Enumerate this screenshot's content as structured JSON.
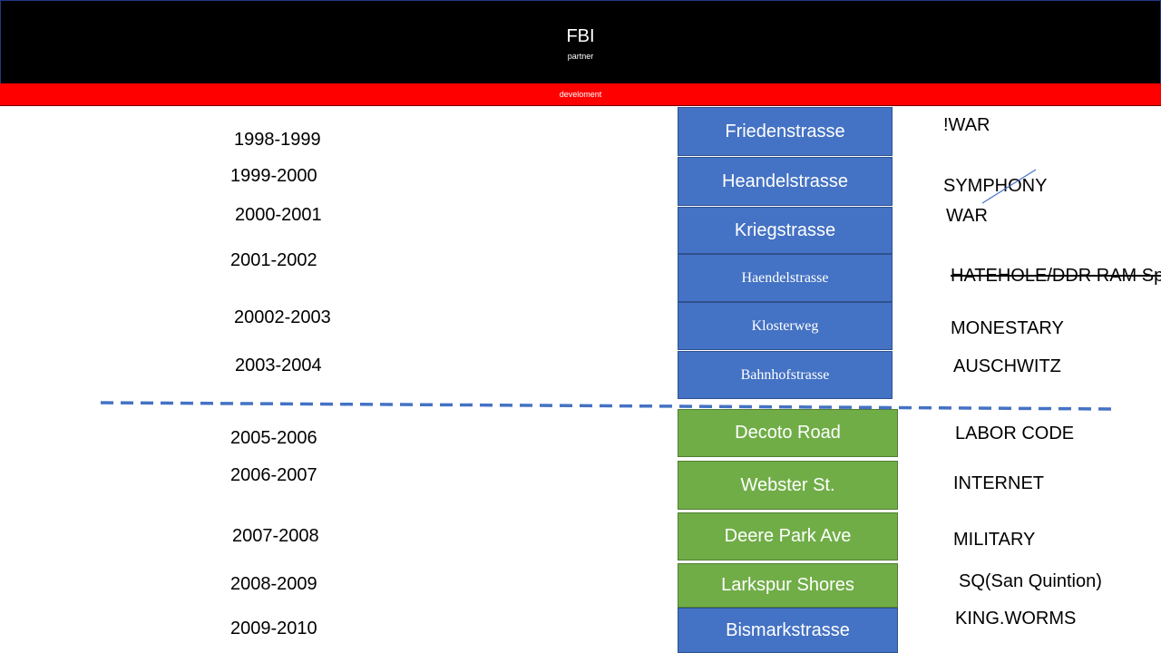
{
  "header": {
    "title": "FBI",
    "subtitle": "partner"
  },
  "banner": {
    "label": "develoment"
  },
  "timeline": [
    {
      "years": "1998-1999",
      "street": "Friedenstrasse",
      "note": "!WAR"
    },
    {
      "years": "1999-2000",
      "street": "Heandelstrasse",
      "note": "SYMPHONY"
    },
    {
      "years": "2000-2001",
      "street": "Kriegstrasse",
      "note": "WAR"
    },
    {
      "years": "2001-2002",
      "street": "Haendelstrasse",
      "note": "HATEHOLE/DDR RAM Sp"
    },
    {
      "years": "20002-2003",
      "street": "Klosterweg",
      "note": "MONESTARY"
    },
    {
      "years": "2003-2004",
      "street": "Bahnhofstrasse",
      "note": "AUSCHWITZ"
    },
    {
      "years": "2005-2006",
      "street": "Decoto Road",
      "note": "LABOR CODE"
    },
    {
      "years": "2006-2007",
      "street": "Webster St.",
      "note": "INTERNET"
    },
    {
      "years": "2007-2008",
      "street": "Deere Park Ave",
      "note": "MILITARY"
    },
    {
      "years": "2008-2009",
      "street": "Larkspur Shores",
      "note": "SQ(San Quintion)"
    },
    {
      "years": "2009-2010",
      "street": "Bismarkstrasse",
      "note": "KING.WORMS"
    }
  ],
  "colors": {
    "header_bg": "#000000",
    "banner_bg": "#ff0000",
    "blue_box": "#4472c4",
    "green_box": "#70ad47",
    "divider": "#4472c4"
  }
}
